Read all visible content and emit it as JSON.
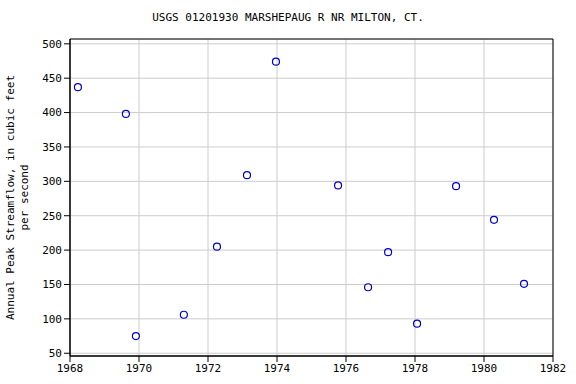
{
  "chart_data": {
    "type": "scatter",
    "title": "USGS 01201930 MARSHEPAUG R NR MILTON, CT.",
    "ylabel": "Annual Peak Streamflow, in cubic feet per second",
    "x": [
      1968.23,
      1969.62,
      1969.91,
      1971.3,
      1972.26,
      1973.13,
      1973.97,
      1975.77,
      1976.64,
      1977.22,
      1978.06,
      1979.19,
      1980.29,
      1981.16
    ],
    "values": [
      437,
      398,
      75,
      106,
      205,
      309,
      474,
      294,
      146,
      197,
      93,
      293,
      244,
      151
    ],
    "color": "#0000cc",
    "marker": "o",
    "xlim": [
      1968,
      1982
    ],
    "xticks": [
      1968,
      1970,
      1972,
      1974,
      1976,
      1978,
      1980,
      1982
    ],
    "ylim": [
      46,
      507
    ],
    "yticks": [
      50,
      100,
      150,
      200,
      250,
      300,
      350,
      400,
      450,
      500
    ],
    "grid": true
  }
}
